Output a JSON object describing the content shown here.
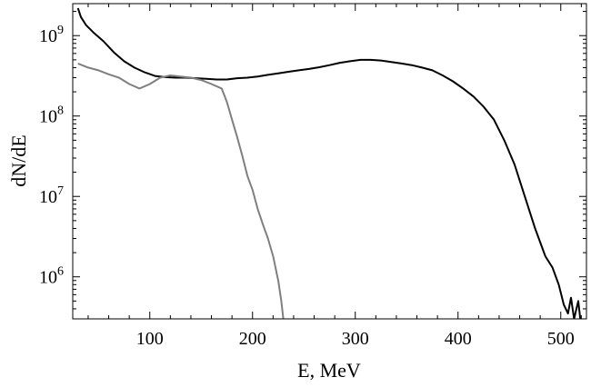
{
  "chart_data": {
    "type": "line",
    "title": "",
    "xlabel": "E, MeV",
    "ylabel": "dN/dE",
    "xlim": [
      25,
      525
    ],
    "ylim": [
      300000,
      2500000000
    ],
    "yscale": "log",
    "grid": false,
    "legend": "none",
    "x_ticks": [
      {
        "value": 100,
        "label": "100"
      },
      {
        "value": 200,
        "label": "200"
      },
      {
        "value": 300,
        "label": "300"
      },
      {
        "value": 400,
        "label": "400"
      },
      {
        "value": 500,
        "label": "500"
      }
    ],
    "y_ticks": [
      {
        "value": 1000000,
        "base": "10",
        "exp": "6"
      },
      {
        "value": 10000000,
        "base": "10",
        "exp": "7"
      },
      {
        "value": 100000000,
        "base": "10",
        "exp": "8"
      },
      {
        "value": 1000000000,
        "base": "10",
        "exp": "9"
      }
    ],
    "series": [
      {
        "color": "#000000",
        "points": [
          [
            30,
            2200000000
          ],
          [
            33,
            1700000000
          ],
          [
            38,
            1350000000
          ],
          [
            45,
            1100000000
          ],
          [
            55,
            850000000
          ],
          [
            65,
            620000000
          ],
          [
            75,
            480000000
          ],
          [
            85,
            400000000
          ],
          [
            95,
            350000000
          ],
          [
            105,
            315000000
          ],
          [
            115,
            305000000
          ],
          [
            125,
            300000000
          ],
          [
            135,
            300000000
          ],
          [
            145,
            295000000
          ],
          [
            155,
            290000000
          ],
          [
            165,
            285000000
          ],
          [
            175,
            285000000
          ],
          [
            185,
            295000000
          ],
          [
            195,
            300000000
          ],
          [
            205,
            310000000
          ],
          [
            215,
            325000000
          ],
          [
            225,
            340000000
          ],
          [
            235,
            355000000
          ],
          [
            245,
            370000000
          ],
          [
            255,
            385000000
          ],
          [
            265,
            405000000
          ],
          [
            275,
            430000000
          ],
          [
            285,
            460000000
          ],
          [
            295,
            480000000
          ],
          [
            305,
            500000000
          ],
          [
            315,
            500000000
          ],
          [
            325,
            490000000
          ],
          [
            335,
            470000000
          ],
          [
            345,
            450000000
          ],
          [
            355,
            430000000
          ],
          [
            365,
            400000000
          ],
          [
            375,
            370000000
          ],
          [
            385,
            320000000
          ],
          [
            395,
            270000000
          ],
          [
            405,
            220000000
          ],
          [
            415,
            175000000
          ],
          [
            425,
            130000000
          ],
          [
            435,
            90000000
          ],
          [
            445,
            50000000
          ],
          [
            455,
            25000000
          ],
          [
            465,
            10000000
          ],
          [
            475,
            4000000
          ],
          [
            485,
            1800000
          ],
          [
            492,
            1300000
          ],
          [
            498,
            800000
          ],
          [
            503,
            450000
          ],
          [
            507,
            350000
          ],
          [
            510,
            550000
          ],
          [
            513,
            300000
          ],
          [
            517,
            500000
          ],
          [
            519,
            300000
          ]
        ]
      },
      {
        "color": "#7f7f7f",
        "points": [
          [
            30,
            450000000
          ],
          [
            40,
            400000000
          ],
          [
            50,
            370000000
          ],
          [
            60,
            330000000
          ],
          [
            70,
            300000000
          ],
          [
            80,
            250000000
          ],
          [
            90,
            220000000
          ],
          [
            100,
            250000000
          ],
          [
            110,
            300000000
          ],
          [
            120,
            320000000
          ],
          [
            130,
            310000000
          ],
          [
            140,
            300000000
          ],
          [
            150,
            280000000
          ],
          [
            160,
            250000000
          ],
          [
            170,
            220000000
          ],
          [
            175,
            150000000
          ],
          [
            180,
            90000000
          ],
          [
            185,
            55000000
          ],
          [
            190,
            32000000
          ],
          [
            195,
            18000000
          ],
          [
            200,
            12000000
          ],
          [
            205,
            7000000
          ],
          [
            210,
            4500000
          ],
          [
            215,
            3000000
          ],
          [
            220,
            1800000
          ],
          [
            225,
            900000
          ],
          [
            228,
            500000
          ],
          [
            230,
            300000
          ]
        ]
      }
    ]
  }
}
